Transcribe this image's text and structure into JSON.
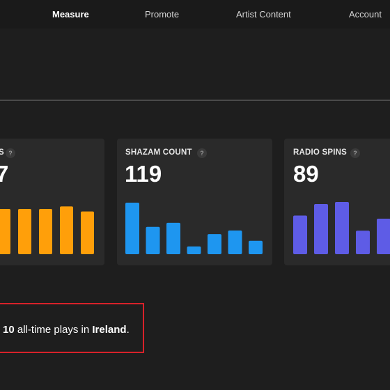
{
  "nav": {
    "items": [
      {
        "label": "Measure",
        "active": true
      },
      {
        "label": "Promote",
        "active": false
      },
      {
        "label": "Artist Content",
        "active": false
      },
      {
        "label": "Account",
        "active": false
      }
    ]
  },
  "cards": [
    {
      "label": "S",
      "help": "?",
      "value": "7",
      "color": "#ff9f0a",
      "bar_levels": [
        0.89,
        0.89,
        0.89,
        0.94,
        0.84
      ]
    },
    {
      "label": "SHAZAM COUNT",
      "help": "?",
      "value": "119",
      "color": "#1e96f0",
      "bar_levels": [
        1.0,
        0.53,
        0.61,
        0.15,
        0.39,
        0.46,
        0.26
      ]
    },
    {
      "label": "RADIO SPINS",
      "help": "?",
      "value": "89",
      "color": "#5e5ce6",
      "bar_levels": [
        0.74,
        0.96,
        1.0,
        0.45,
        0.68
      ]
    }
  ],
  "callout": {
    "count": "10",
    "middle": " all-time plays in ",
    "place": "Ireland",
    "end": "."
  }
}
